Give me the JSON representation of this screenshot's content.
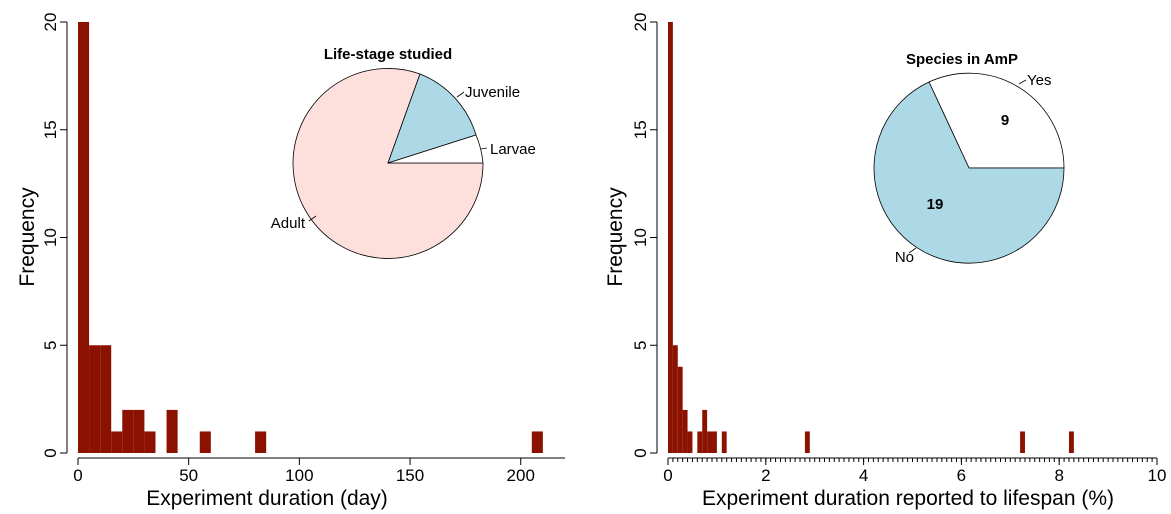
{
  "colors": {
    "bar": "#8b1200",
    "juvenile": "#add8e6",
    "adult": "#fde0dc",
    "larvae": "#ffffff",
    "no": "#add8e6",
    "yes": "#ffffff"
  },
  "chart_data": [
    {
      "type": "bar",
      "xlabel": "Experiment duration (day)",
      "ylabel": "Frequency",
      "xlim": [
        0,
        220
      ],
      "ylim": [
        0,
        20
      ],
      "x_ticks": [
        "0",
        "50",
        "100",
        "150",
        "200"
      ],
      "x_tick_values": [
        0,
        50,
        100,
        150,
        200
      ],
      "y_ticks": [
        "0",
        "5",
        "10",
        "15",
        "20"
      ],
      "y_tick_values": [
        0,
        5,
        10,
        15,
        20
      ],
      "bin_width": 5,
      "bars": [
        {
          "x0": 0,
          "x1": 5,
          "value": 20
        },
        {
          "x0": 5,
          "x1": 10,
          "value": 5
        },
        {
          "x0": 10,
          "x1": 15,
          "value": 5
        },
        {
          "x0": 15,
          "x1": 20,
          "value": 1
        },
        {
          "x0": 20,
          "x1": 25,
          "value": 2
        },
        {
          "x0": 25,
          "x1": 30,
          "value": 2
        },
        {
          "x0": 30,
          "x1": 35,
          "value": 1
        },
        {
          "x0": 40,
          "x1": 45,
          "value": 2
        },
        {
          "x0": 55,
          "x1": 60,
          "value": 1
        },
        {
          "x0": 80,
          "x1": 85,
          "value": 1
        },
        {
          "x0": 205,
          "x1": 210,
          "value": 1
        }
      ],
      "inset_pie": {
        "type": "pie",
        "title": "Life-stage studied",
        "slices": [
          {
            "label": "Adult",
            "fraction": 0.805,
            "color_key": "adult"
          },
          {
            "label": "Juvenile",
            "fraction": 0.155,
            "color_key": "juvenile"
          },
          {
            "label": "Larvae",
            "fraction": 0.04,
            "color_key": "larvae"
          }
        ]
      }
    },
    {
      "type": "bar",
      "xlabel": "Experiment duration reported to lifespan (%)",
      "ylabel": "Frequency",
      "xlim": [
        0,
        10
      ],
      "ylim": [
        0,
        20
      ],
      "x_ticks": [
        "0",
        "2",
        "4",
        "6",
        "8",
        "10"
      ],
      "x_tick_values": [
        0,
        2,
        4,
        6,
        8,
        10
      ],
      "y_ticks": [
        "0",
        "5",
        "10",
        "15",
        "20"
      ],
      "y_tick_values": [
        0,
        5,
        10,
        15,
        20
      ],
      "minor_tick_step": 0.1,
      "bin_width": 0.1,
      "bars": [
        {
          "x0": 0.0,
          "x1": 0.1,
          "value": 20
        },
        {
          "x0": 0.1,
          "x1": 0.2,
          "value": 5
        },
        {
          "x0": 0.2,
          "x1": 0.3,
          "value": 4
        },
        {
          "x0": 0.3,
          "x1": 0.4,
          "value": 2
        },
        {
          "x0": 0.4,
          "x1": 0.5,
          "value": 1
        },
        {
          "x0": 0.6,
          "x1": 0.7,
          "value": 1
        },
        {
          "x0": 0.7,
          "x1": 0.8,
          "value": 2
        },
        {
          "x0": 0.8,
          "x1": 0.9,
          "value": 1
        },
        {
          "x0": 0.9,
          "x1": 1.0,
          "value": 1
        },
        {
          "x0": 1.1,
          "x1": 1.2,
          "value": 1
        },
        {
          "x0": 2.8,
          "x1": 2.9,
          "value": 1
        },
        {
          "x0": 7.2,
          "x1": 7.3,
          "value": 1
        },
        {
          "x0": 8.2,
          "x1": 8.3,
          "value": 1
        }
      ],
      "inset_pie": {
        "type": "pie",
        "title": "Species in AmP",
        "slices": [
          {
            "label": "Yes",
            "count": "9",
            "color_key": "yes"
          },
          {
            "label": "No",
            "count": "19",
            "color_key": "no"
          }
        ]
      }
    }
  ]
}
